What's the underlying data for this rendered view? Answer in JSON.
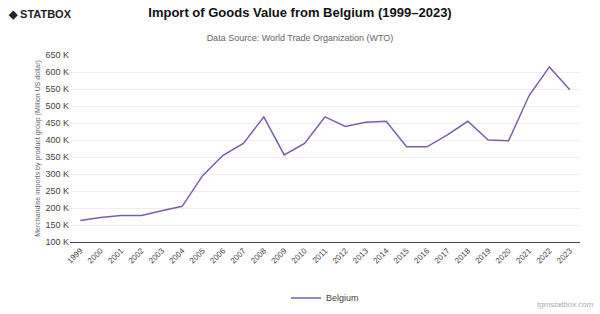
{
  "chart_data": {
    "type": "line",
    "title": "Import of Goods Value from Belgium (1999–2023)",
    "subtitle": "Data Source: World Trade Organization (WTO)",
    "y_label": "Merchandise imports by product group (Million US dollar)",
    "annotations": [
      "◆ STATBOX",
      "tgmstatbox.com"
    ],
    "x": [
      1999,
      2000,
      2001,
      2002,
      2003,
      2004,
      2005,
      2006,
      2007,
      2008,
      2009,
      2010,
      2011,
      2012,
      2013,
      2014,
      2015,
      2016,
      2017,
      2018,
      2019,
      2020,
      2021,
      2022,
      2023
    ],
    "series": [
      {
        "name": "Belgium",
        "color": "#7b5ea7",
        "values": [
          163000,
          172000,
          178000,
          178000,
          192000,
          205000,
          295000,
          355000,
          390000,
          468000,
          356000,
          390000,
          468000,
          440000,
          452000,
          455000,
          380000,
          380000,
          415000,
          455000,
          400000,
          398000,
          530000,
          615000,
          548000
        ]
      }
    ],
    "xlim": [
      1998.5,
      2023.5
    ],
    "xticks": [
      1999,
      2000,
      2001,
      2002,
      2003,
      2004,
      2005,
      2006,
      2007,
      2008,
      2009,
      2010,
      2011,
      2012,
      2013,
      2014,
      2015,
      2016,
      2017,
      2018,
      2019,
      2020,
      2021,
      2022,
      2023
    ],
    "ylim": [
      100000,
      650000
    ],
    "yticks": [
      {
        "value": 100000,
        "label": "100 K"
      },
      {
        "value": 150000,
        "label": "150 K"
      },
      {
        "value": 200000,
        "label": "200 K"
      },
      {
        "value": 250000,
        "label": "250 K"
      },
      {
        "value": 300000,
        "label": "300 K"
      },
      {
        "value": 350000,
        "label": "350 K"
      },
      {
        "value": 400000,
        "label": "400 K"
      },
      {
        "value": 450000,
        "label": "450 K"
      },
      {
        "value": 500000,
        "label": "500 K"
      },
      {
        "value": 550000,
        "label": "550 K"
      },
      {
        "value": 600000,
        "label": "600 K"
      },
      {
        "value": 650000,
        "label": "650 K"
      }
    ],
    "grid": true,
    "legend": "bottom"
  }
}
